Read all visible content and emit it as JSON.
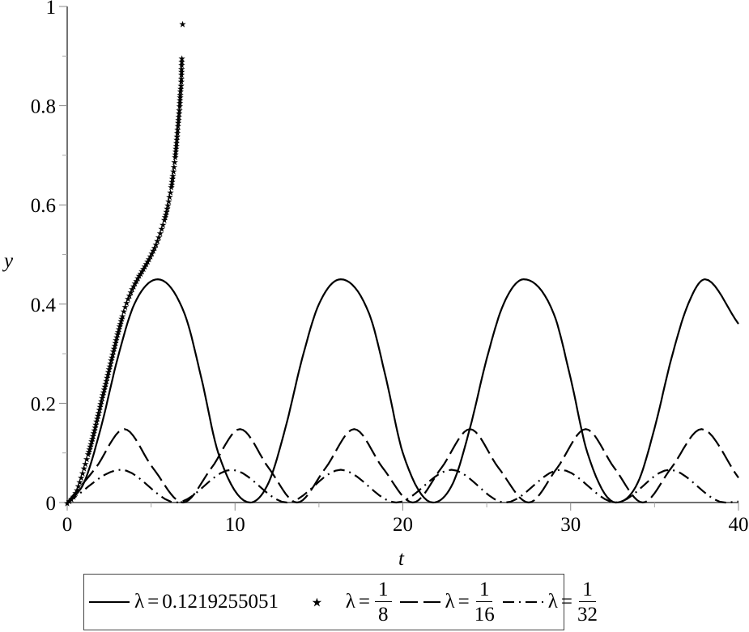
{
  "chart_data": {
    "type": "line",
    "title": "",
    "xlabel": "t",
    "ylabel": "y",
    "xlim": [
      0,
      40
    ],
    "ylim": [
      0,
      1
    ],
    "x_ticks": [
      "0",
      "10",
      "20",
      "30",
      "40"
    ],
    "y_ticks": [
      "0",
      "0.2",
      "0.4",
      "0.6",
      "0.8",
      "1"
    ],
    "grid": false,
    "legend_position": "bottom",
    "series": [
      {
        "name": "λ = 0.1219255051",
        "style": "solid",
        "description": "periodic, amplitude ~0.45, period ~10.9",
        "points": [
          [
            0,
            0
          ],
          [
            1,
            0.04
          ],
          [
            2,
            0.15
          ],
          [
            3,
            0.29
          ],
          [
            4,
            0.4
          ],
          [
            5.4,
            0.45
          ],
          [
            7,
            0.38
          ],
          [
            8,
            0.25
          ],
          [
            9,
            0.1
          ],
          [
            10.9,
            0
          ],
          [
            12,
            0.04
          ],
          [
            13,
            0.15
          ],
          [
            14,
            0.29
          ],
          [
            15,
            0.4
          ],
          [
            16.3,
            0.45
          ],
          [
            18,
            0.38
          ],
          [
            19,
            0.25
          ],
          [
            20,
            0.1
          ],
          [
            21.8,
            0
          ],
          [
            23,
            0.04
          ],
          [
            24,
            0.15
          ],
          [
            25,
            0.29
          ],
          [
            26,
            0.4
          ],
          [
            27.2,
            0.45
          ],
          [
            29,
            0.38
          ],
          [
            30,
            0.25
          ],
          [
            31,
            0.1
          ],
          [
            32.7,
            0
          ],
          [
            34,
            0.04
          ],
          [
            35,
            0.15
          ],
          [
            36,
            0.29
          ],
          [
            37,
            0.4
          ],
          [
            38,
            0.45
          ],
          [
            40,
            0.36
          ]
        ]
      },
      {
        "name": "λ = 1/8",
        "style": "star-markers",
        "description": "blows up near t ≈ 6.8",
        "points": [
          [
            0,
            0
          ],
          [
            0.5,
            0.02
          ],
          [
            1,
            0.07
          ],
          [
            1.5,
            0.13
          ],
          [
            2,
            0.2
          ],
          [
            2.5,
            0.27
          ],
          [
            3,
            0.34
          ],
          [
            3.5,
            0.4
          ],
          [
            4,
            0.44
          ],
          [
            4.5,
            0.47
          ],
          [
            5,
            0.5
          ],
          [
            5.5,
            0.54
          ],
          [
            6,
            0.6
          ],
          [
            6.3,
            0.66
          ],
          [
            6.5,
            0.72
          ],
          [
            6.6,
            0.76
          ],
          [
            6.7,
            0.8
          ],
          [
            6.75,
            0.83
          ],
          [
            6.8,
            0.85
          ],
          [
            6.82,
            0.88
          ],
          [
            6.85,
            0.92
          ],
          [
            6.9,
            1.0
          ]
        ]
      },
      {
        "name": "λ = 1/16",
        "style": "dashed",
        "description": "periodic, amplitude ~0.148, period ~6.9",
        "points": [
          [
            0,
            0
          ],
          [
            1.7,
            0.07
          ],
          [
            3.4,
            0.148
          ],
          [
            5.1,
            0.07
          ],
          [
            6.9,
            0
          ],
          [
            8.6,
            0.07
          ],
          [
            10.3,
            0.148
          ],
          [
            12,
            0.07
          ],
          [
            13.7,
            0
          ],
          [
            15.4,
            0.07
          ],
          [
            17.1,
            0.148
          ],
          [
            18.8,
            0.07
          ],
          [
            20.6,
            0
          ],
          [
            22.3,
            0.07
          ],
          [
            24,
            0.148
          ],
          [
            25.7,
            0.07
          ],
          [
            27.5,
            0
          ],
          [
            29.2,
            0.07
          ],
          [
            30.9,
            0.148
          ],
          [
            32.6,
            0.07
          ],
          [
            34.3,
            0
          ],
          [
            36,
            0.07
          ],
          [
            37.8,
            0.148
          ],
          [
            40,
            0.05
          ]
        ]
      },
      {
        "name": "λ = 1/32",
        "style": "dash-dot",
        "description": "periodic, amplitude ~0.066, period ~6.5",
        "points": [
          [
            0,
            0
          ],
          [
            3.2,
            0.066
          ],
          [
            6.5,
            0
          ],
          [
            9.8,
            0.066
          ],
          [
            13.1,
            0
          ],
          [
            16.3,
            0.066
          ],
          [
            19.6,
            0
          ],
          [
            22.9,
            0.066
          ],
          [
            26.1,
            0
          ],
          [
            29.4,
            0.066
          ],
          [
            32.7,
            0
          ],
          [
            35.9,
            0.066
          ],
          [
            39.2,
            0
          ],
          [
            40,
            0.002
          ]
        ]
      }
    ]
  },
  "legend": {
    "items": [
      {
        "label": "λ = 0.1219255051",
        "lambda": "λ",
        "eq": "=",
        "value": "0.1219255051"
      },
      {
        "label": "λ = 1/8",
        "lambda": "λ",
        "eq": "=",
        "num": "1",
        "den": "8"
      },
      {
        "label": "λ = 1/16",
        "lambda": "λ",
        "eq": "=",
        "num": "1",
        "den": "16"
      },
      {
        "label": "λ = 1/32",
        "lambda": "λ",
        "eq": "=",
        "num": "1",
        "den": "32"
      }
    ],
    "star_symbol": "⋆"
  }
}
